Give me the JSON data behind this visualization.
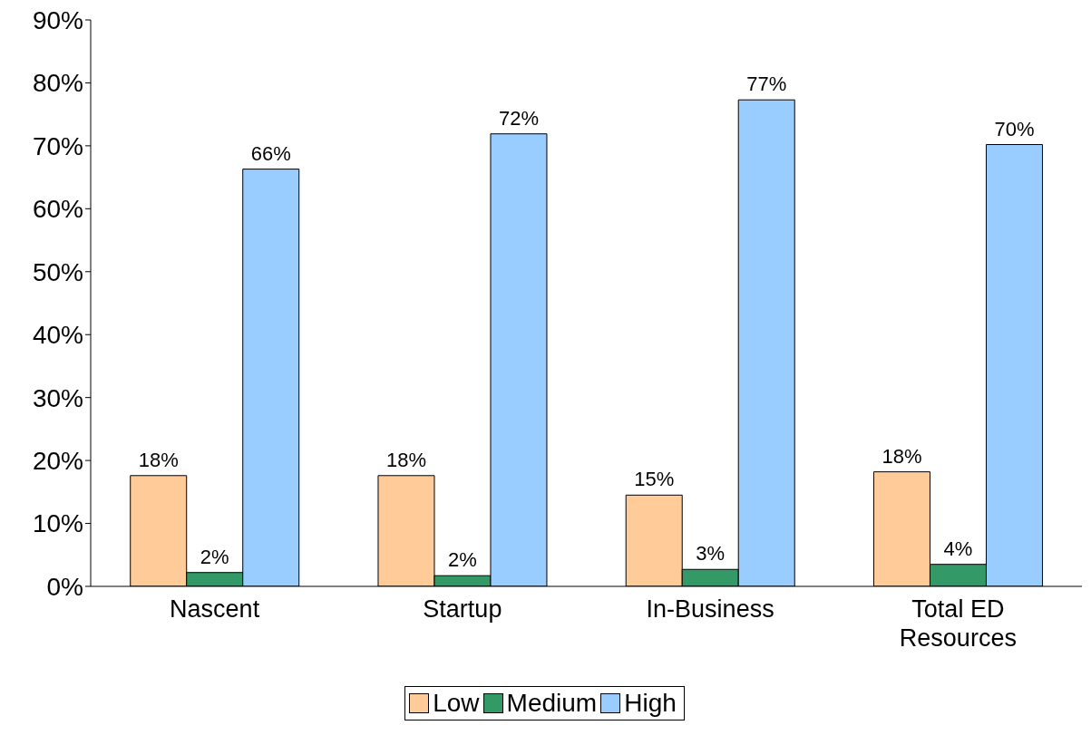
{
  "chart_data": {
    "type": "bar",
    "categories": [
      "Nascent",
      "Startup",
      "In-Business",
      "Total ED Resources"
    ],
    "series": [
      {
        "name": "Low",
        "color": "#ffcc99",
        "values": [
          17.6,
          17.6,
          14.5,
          18.2
        ],
        "value_labels": [
          "18%",
          "18%",
          "15%",
          "18%"
        ]
      },
      {
        "name": "Medium",
        "color": "#339966",
        "values": [
          2.2,
          1.7,
          2.7,
          3.5
        ],
        "value_labels": [
          "2%",
          "2%",
          "3%",
          "4%"
        ]
      },
      {
        "name": "High",
        "color": "#99ccff",
        "values": [
          66.3,
          71.9,
          77.3,
          70.2
        ],
        "value_labels": [
          "66%",
          "72%",
          "77%",
          "70%"
        ]
      }
    ],
    "ylim": [
      0,
      90
    ],
    "yticks": [
      {
        "value": 0,
        "label": "0%"
      },
      {
        "value": 10,
        "label": "10%"
      },
      {
        "value": 20,
        "label": "20%"
      },
      {
        "value": 30,
        "label": "30%"
      },
      {
        "value": 40,
        "label": "40%"
      },
      {
        "value": 50,
        "label": "50%"
      },
      {
        "value": 60,
        "label": "60%"
      },
      {
        "value": 70,
        "label": "70%"
      },
      {
        "value": 80,
        "label": "80%"
      },
      {
        "value": 90,
        "label": "90%"
      }
    ],
    "grid": false,
    "legend": "bottom"
  }
}
